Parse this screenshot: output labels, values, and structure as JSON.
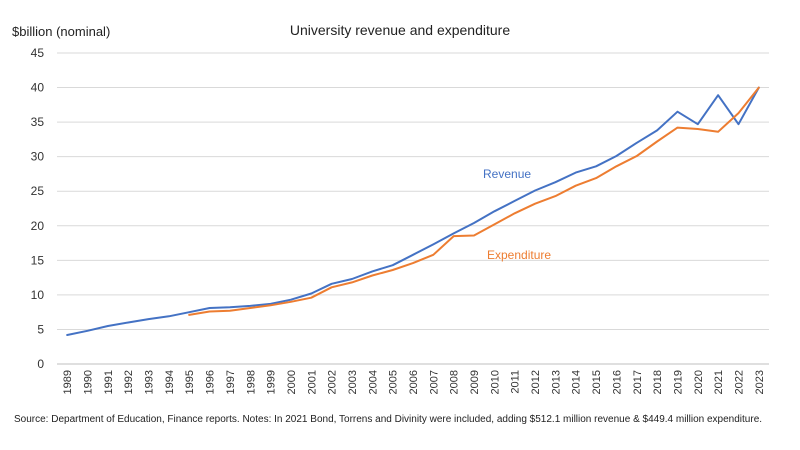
{
  "chart_data": {
    "type": "line",
    "title": "University revenue and expenditure",
    "ylabel": "$billion (nominal)",
    "xlabel": "",
    "ylim": [
      0,
      45
    ],
    "yticks": [
      0,
      5,
      10,
      15,
      20,
      25,
      30,
      35,
      40,
      45
    ],
    "grid": true,
    "x": [
      "1989",
      "1990",
      "1991",
      "1992",
      "1993",
      "1994",
      "1995",
      "1996",
      "1997",
      "1998",
      "1999",
      "2000",
      "2001",
      "2002",
      "2003",
      "2004",
      "2005",
      "2006",
      "2007",
      "2008",
      "2009",
      "2010",
      "2011",
      "2012",
      "2013",
      "2014",
      "2015",
      "2016",
      "2017",
      "2018",
      "2019",
      "2020",
      "2021",
      "2022",
      "2023"
    ],
    "series": [
      {
        "name": "Revenue",
        "color": "#4472C4",
        "values": [
          4.2,
          4.8,
          5.5,
          6.0,
          6.5,
          6.9,
          7.5,
          8.1,
          8.2,
          8.4,
          8.7,
          9.3,
          10.2,
          11.6,
          12.3,
          13.4,
          14.3,
          15.8,
          17.3,
          18.9,
          20.4,
          22.1,
          23.6,
          25.1,
          26.3,
          27.7,
          28.6,
          30.1,
          32.0,
          33.8,
          36.5,
          34.7,
          38.9,
          34.7,
          40.0
        ]
      },
      {
        "name": "Expenditure",
        "color": "#ED7D31",
        "values": [
          null,
          null,
          null,
          null,
          null,
          null,
          7.1,
          7.6,
          7.7,
          8.1,
          8.5,
          9.0,
          9.6,
          11.1,
          11.8,
          12.8,
          13.6,
          14.6,
          15.8,
          18.5,
          18.6,
          20.2,
          21.8,
          23.2,
          24.3,
          25.8,
          26.9,
          28.6,
          30.1,
          32.2,
          34.2,
          34.0,
          33.6,
          36.3,
          40.0
        ]
      }
    ],
    "source": "Source: Department of Education, Finance reports. Notes: In 2021 Bond, Torrens and Divinity were included, adding $512.1 million revenue & $449.4 million expenditure."
  }
}
